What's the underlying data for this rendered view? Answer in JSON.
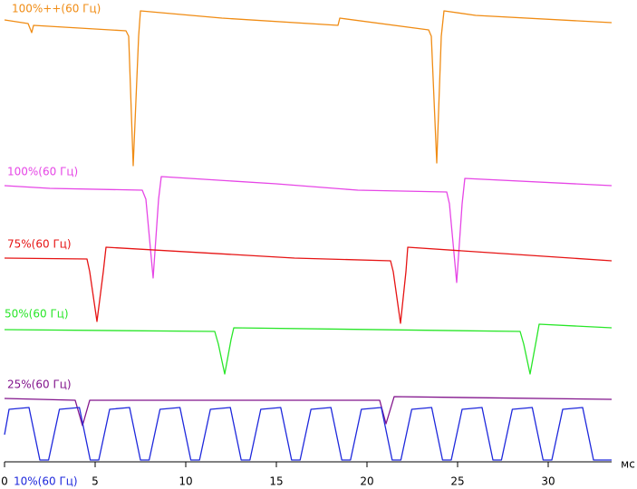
{
  "chart_data": {
    "type": "line",
    "xlabel": "мс",
    "xlim": [
      0,
      33.5
    ],
    "xticks": [
      0,
      5,
      10,
      15,
      20,
      25,
      30
    ],
    "ylim": [
      0,
      510
    ],
    "series": [
      {
        "name": "100%++(60 Гц)",
        "color": "#f08c14",
        "x": [
          0,
          1.3,
          1.5,
          1.6,
          6.7,
          6.85,
          7.1,
          7.4,
          7.5,
          12,
          18.4,
          18.5,
          23.4,
          23.55,
          23.85,
          24.1,
          24.25,
          26,
          33.5
        ],
        "values": [
          488,
          484,
          474,
          482,
          476,
          470,
          327,
          470,
          498,
          490,
          482,
          490,
          477,
          470,
          330,
          470,
          498,
          493,
          485
        ]
      },
      {
        "name": "100%(60 Гц)",
        "color": "#e646e6",
        "x": [
          0,
          2.5,
          7.6,
          7.8,
          8.2,
          8.5,
          8.65,
          15,
          19.5,
          24.4,
          24.55,
          24.95,
          25.25,
          25.4,
          33.5
        ],
        "values": [
          305,
          302,
          300,
          290,
          203,
          290,
          315,
          307,
          300,
          298,
          285,
          198,
          285,
          313,
          305
        ]
      },
      {
        "name": "75%(60 Гц)",
        "color": "#e61414",
        "x": [
          0,
          4.55,
          4.7,
          5.1,
          5.45,
          5.6,
          16,
          21.3,
          21.45,
          21.85,
          22.15,
          22.25,
          33.5
        ],
        "values": [
          225,
          224,
          210,
          155,
          210,
          237,
          225,
          222,
          210,
          153,
          210,
          237,
          222
        ]
      },
      {
        "name": "50%(60 Гц)",
        "color": "#28e628",
        "x": [
          0,
          11.6,
          11.8,
          12.15,
          12.5,
          12.65,
          28.45,
          28.65,
          29,
          29.35,
          29.5,
          33.5
        ],
        "values": [
          146,
          144,
          130,
          97,
          135,
          148,
          144,
          130,
          97,
          135,
          152,
          148
        ]
      },
      {
        "name": "25%(60 Гц)",
        "color": "#82148c",
        "x": [
          0,
          3.9,
          4.3,
          4.7,
          20.7,
          21.05,
          21.5,
          33.5
        ],
        "values": [
          70,
          68,
          40,
          68,
          68,
          42,
          72,
          69
        ]
      },
      {
        "name": "10%(60 Гц)",
        "color": "#1e28dc",
        "x": [
          0,
          0.25,
          1.35,
          1.95,
          2.43,
          3.03,
          4.13,
          4.73,
          5.2,
          5.8,
          6.9,
          7.5,
          7.98,
          8.58,
          9.68,
          10.28,
          10.76,
          11.36,
          12.46,
          13.06,
          13.54,
          14.14,
          15.24,
          15.84,
          16.31,
          16.91,
          18.01,
          18.61,
          19.09,
          19.69,
          20.79,
          21.39,
          21.87,
          22.47,
          23.57,
          24.17,
          24.65,
          25.25,
          26.35,
          26.95,
          27.42,
          28.02,
          29.12,
          29.72,
          30.2,
          30.8,
          31.9,
          32.5,
          33.5
        ],
        "values": [
          30,
          58,
          60,
          2,
          2,
          58,
          60,
          2,
          2,
          58,
          60,
          2,
          2,
          58,
          60,
          2,
          2,
          58,
          60,
          2,
          2,
          58,
          60,
          2,
          2,
          58,
          60,
          2,
          2,
          58,
          60,
          2,
          2,
          58,
          60,
          2,
          2,
          58,
          60,
          2,
          2,
          58,
          60,
          2,
          2,
          58,
          60,
          2,
          2
        ]
      }
    ]
  }
}
